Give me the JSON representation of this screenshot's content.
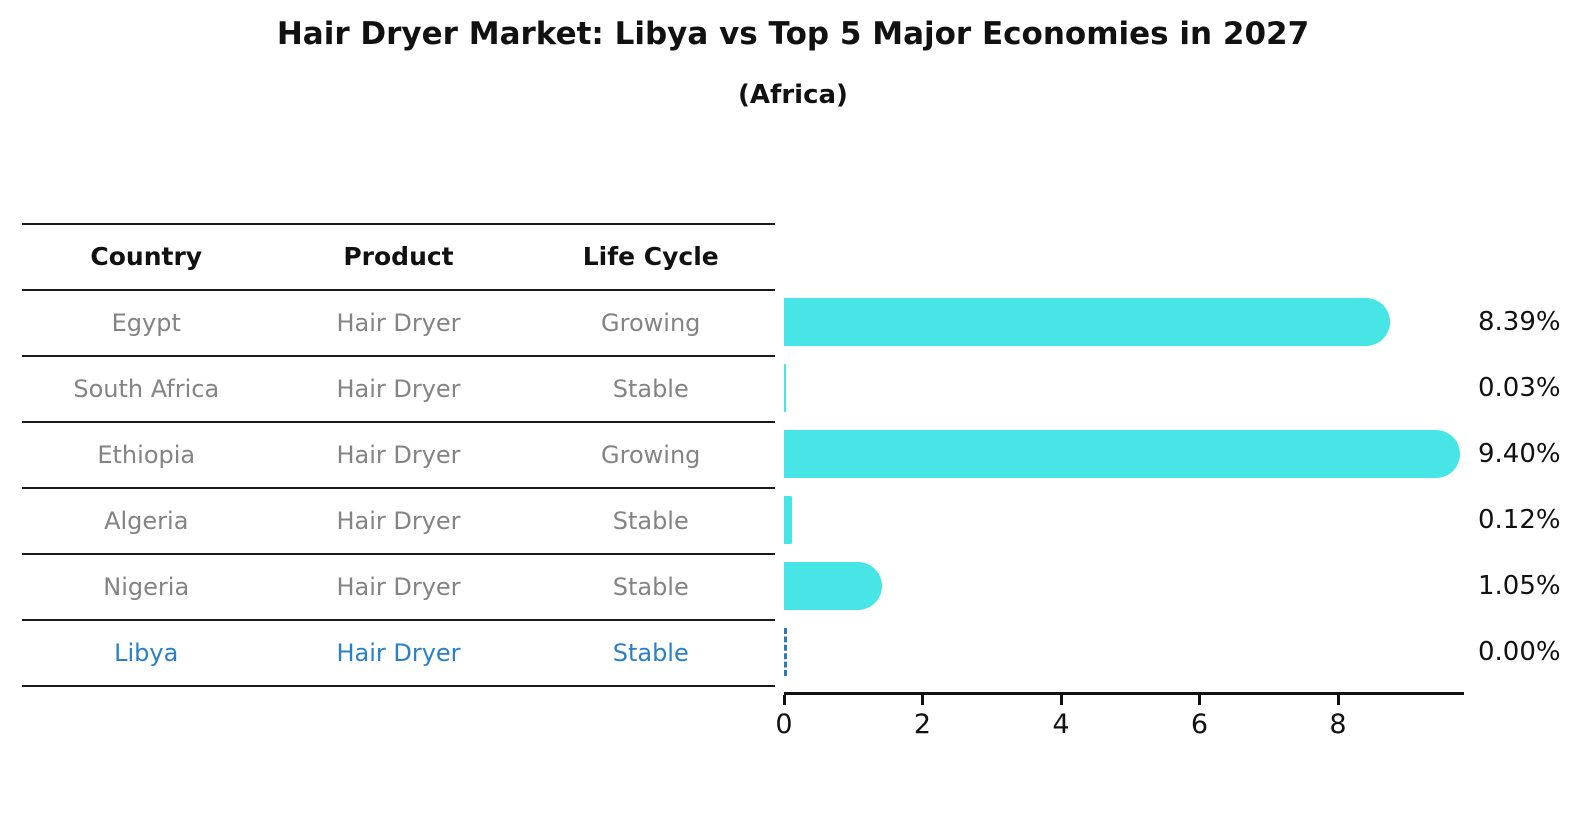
{
  "title": "Hair Dryer Market: Libya vs Top 5 Major Economies in 2027",
  "subtitle": "(Africa)",
  "colors": {
    "bar": "#48e5e6",
    "highlight_blue": "#2a80c8",
    "table_text_gray": "#848484",
    "axis_black": "#111111"
  },
  "table": {
    "headers": [
      "Country",
      "Product",
      "Life Cycle"
    ],
    "rows": [
      {
        "country": "Egypt",
        "product": "Hair Dryer",
        "life_cycle": "Growing",
        "highlight": false
      },
      {
        "country": "South Africa",
        "product": "Hair Dryer",
        "life_cycle": "Stable",
        "highlight": false
      },
      {
        "country": "Ethiopia",
        "product": "Hair Dryer",
        "life_cycle": "Growing",
        "highlight": false
      },
      {
        "country": "Algeria",
        "product": "Hair Dryer",
        "life_cycle": "Stable",
        "highlight": false
      },
      {
        "country": "Nigeria",
        "product": "Hair Dryer",
        "life_cycle": "Stable",
        "highlight": true
      }
    ],
    "highlight_row": {
      "country": "Libya",
      "product": "Hair Dryer",
      "life_cycle": "Stable"
    }
  },
  "chart_data": {
    "type": "bar",
    "orientation": "horizontal",
    "title": "Hair Dryer Market: Libya vs Top 5 Major Economies in 2027",
    "subtitle": "(Africa)",
    "categories": [
      "Egypt",
      "South Africa",
      "Ethiopia",
      "Algeria",
      "Nigeria",
      "Libya"
    ],
    "values": [
      8.39,
      0.03,
      9.4,
      0.12,
      1.05,
      0.0
    ],
    "value_labels": [
      "8.39%",
      "0.03%",
      "9.40%",
      "0.12%",
      "1.05%",
      "0.00%"
    ],
    "x_ticks": [
      "0",
      "2",
      "4",
      "6",
      "8"
    ],
    "x_tick_values": [
      0,
      2,
      4,
      6,
      8
    ],
    "xlim": [
      0,
      9.82
    ],
    "highlight_index": 5,
    "legend": "none",
    "grid": "off"
  }
}
